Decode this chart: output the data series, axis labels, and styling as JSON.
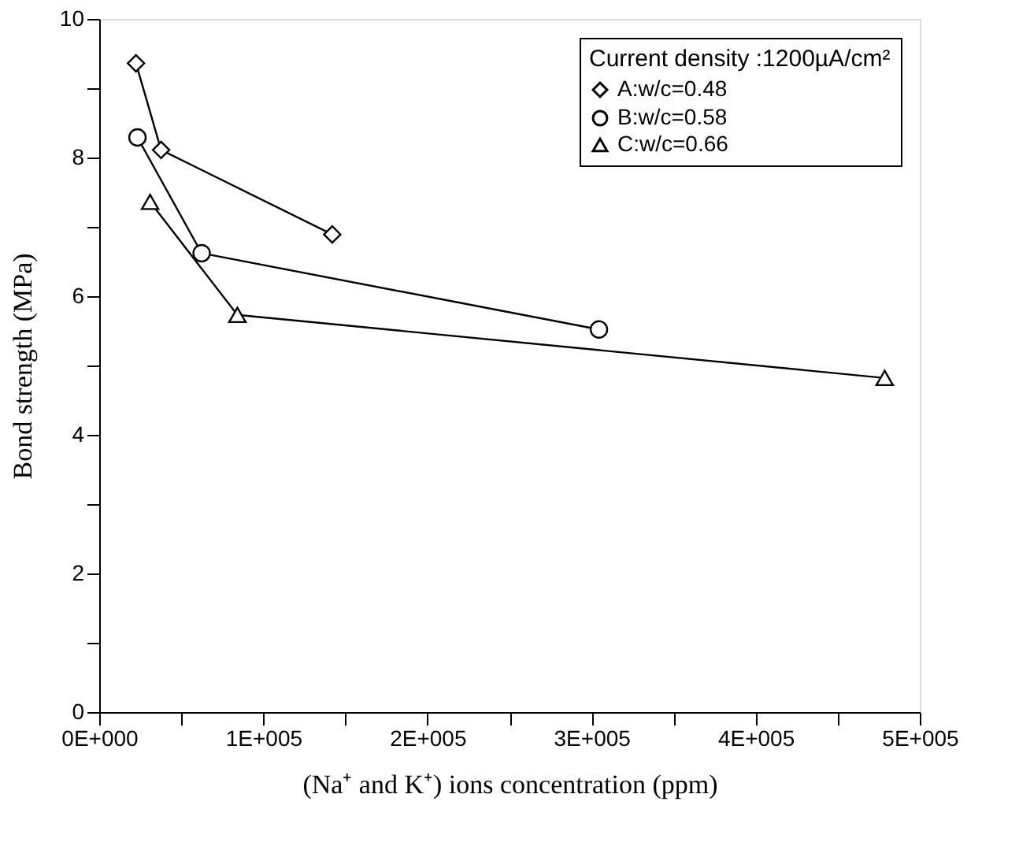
{
  "chart_data": {
    "type": "line",
    "xlabel": "(Na⁺ and K⁺) ions concentration (ppm)",
    "ylabel": "Bond strength (MPa)",
    "legend_title": "Current density :1200µA/cm²",
    "series": [
      {
        "name": "A:w/c=0.48",
        "color": "#000000",
        "marker": "diamond",
        "x": [
          22400,
          37700,
          142000
        ],
        "values": [
          9.36,
          8.11,
          6.89
        ]
      },
      {
        "name": "B:w/c=0.58",
        "color": "#000000",
        "marker": "circle",
        "x": [
          23300,
          62400,
          304500
        ],
        "values": [
          8.29,
          6.62,
          5.52
        ]
      },
      {
        "name": "C:w/c=0.66",
        "color": "#000000",
        "marker": "triangle",
        "x": [
          31000,
          84200,
          478600
        ],
        "values": [
          7.36,
          5.73,
          4.82
        ]
      }
    ],
    "xlim": [
      0,
      500000
    ],
    "xticks": [
      {
        "value": 0,
        "label": "0E+000"
      },
      {
        "value": 50000,
        "label": null
      },
      {
        "value": 100000,
        "label": "1E+005"
      },
      {
        "value": 150000,
        "label": null
      },
      {
        "value": 200000,
        "label": "2E+005"
      },
      {
        "value": 250000,
        "label": null
      },
      {
        "value": 300000,
        "label": "3E+005"
      },
      {
        "value": 350000,
        "label": null
      },
      {
        "value": 400000,
        "label": "4E+005"
      },
      {
        "value": 450000,
        "label": null
      },
      {
        "value": 500000,
        "label": "5E+005"
      }
    ],
    "ylim": [
      0,
      10
    ],
    "yticks": [
      0,
      {
        "value": 1,
        "label": null
      },
      2,
      {
        "value": 3,
        "label": null
      },
      4,
      {
        "value": 5,
        "label": null
      },
      6,
      {
        "value": 7,
        "label": null
      },
      8,
      {
        "value": 9,
        "label": null
      },
      10
    ],
    "grid": false,
    "legend": "top right",
    "line_style": "solid"
  }
}
